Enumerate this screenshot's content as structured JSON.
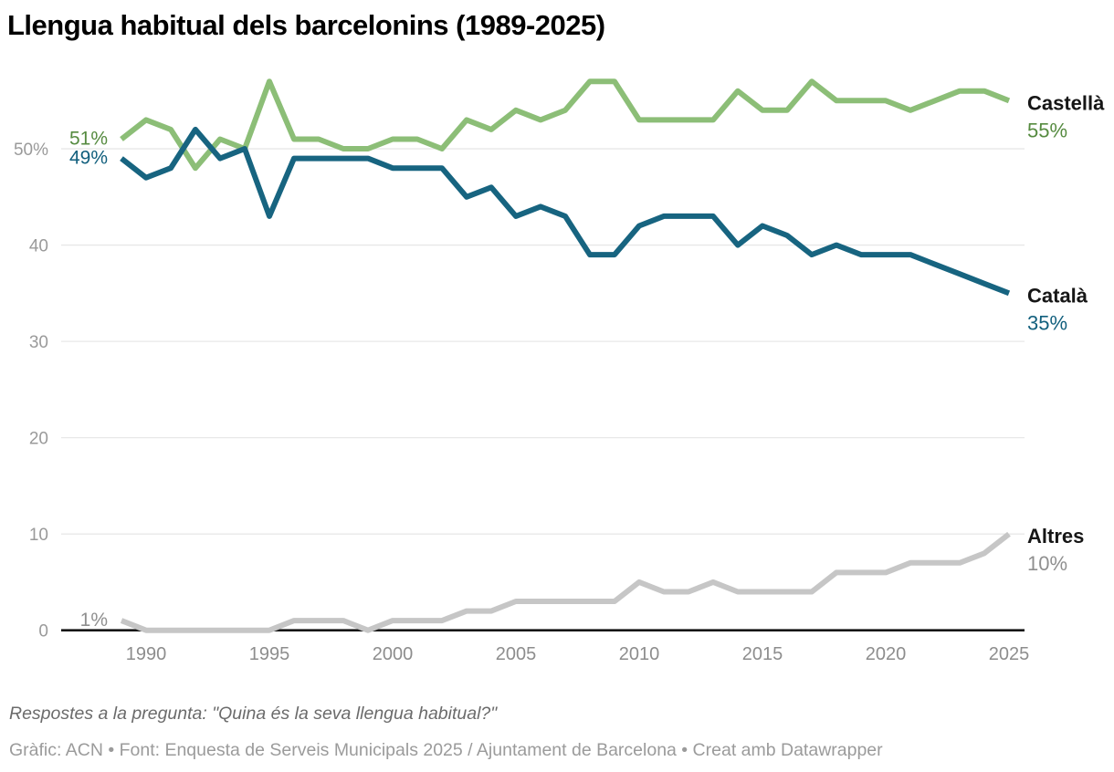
{
  "title": "Llengua habitual dels barcelonins (1989-2025)",
  "footer": {
    "note": "Respostes a la pregunta: \"Quina és la seva llengua habitual?\"",
    "credits": "Gràfic: ACN • Font: Enquesta de Serveis Municipals 2025 / Ajuntament de Barcelona • Creat amb Datawrapper"
  },
  "colors": {
    "castella_line": "#8cbe77",
    "castella_label": "#568b40",
    "catala_line": "#176480",
    "catala_label": "#115f7d",
    "altres_line": "#c6c6c6",
    "altres_label": "#8f8f8f",
    "grid": "#e8e8e8",
    "axis_baseline": "#161616",
    "tick_text": "#9a9a9a"
  },
  "chart_data": {
    "type": "line",
    "title": "Llengua habitual dels barcelonins (1989-2025)",
    "xlabel": "",
    "ylabel": "",
    "ylim": [
      0,
      58
    ],
    "grid": "horizontal",
    "legend_position": "right-edge-labels",
    "x": [
      1989,
      1990,
      1991,
      1992,
      1993,
      1994,
      1995,
      1996,
      1997,
      1998,
      1999,
      2000,
      2001,
      2002,
      2003,
      2004,
      2005,
      2006,
      2007,
      2008,
      2009,
      2010,
      2011,
      2012,
      2013,
      2014,
      2015,
      2016,
      2017,
      2018,
      2019,
      2020,
      2021,
      2022,
      2023,
      2024,
      2025
    ],
    "xticks": [
      1990,
      1995,
      2000,
      2005,
      2010,
      2015,
      2020,
      2025
    ],
    "yticks": [
      {
        "value": 50,
        "label": "50%"
      },
      {
        "value": 40,
        "label": "40"
      },
      {
        "value": 30,
        "label": "30"
      },
      {
        "value": 20,
        "label": "20"
      },
      {
        "value": 10,
        "label": "10"
      },
      {
        "value": 0,
        "label": "0"
      }
    ],
    "series": [
      {
        "name": "Castellà",
        "color": "#8cbe77",
        "label_color": "#568b40",
        "start_label": "51%",
        "end_label": "55%",
        "values": [
          51,
          53,
          52,
          48,
          51,
          50,
          57,
          51,
          51,
          50,
          50,
          51,
          51,
          50,
          53,
          52,
          54,
          53,
          54,
          57,
          57,
          53,
          53,
          53,
          53,
          56,
          54,
          54,
          57,
          55,
          55,
          55,
          54,
          55,
          56,
          56,
          55
        ]
      },
      {
        "name": "Català",
        "color": "#176480",
        "label_color": "#115f7d",
        "start_label": "49%",
        "end_label": "35%",
        "values": [
          49,
          47,
          48,
          52,
          49,
          50,
          43,
          49,
          49,
          49,
          49,
          48,
          48,
          48,
          45,
          46,
          43,
          44,
          43,
          39,
          39,
          42,
          43,
          43,
          43,
          40,
          42,
          41,
          39,
          40,
          39,
          39,
          39,
          38,
          37,
          36,
          35
        ]
      },
      {
        "name": "Altres",
        "color": "#c6c6c6",
        "label_color": "#8f8f8f",
        "start_label": "1%",
        "end_label": "10%",
        "values": [
          1,
          0,
          0,
          0,
          0,
          0,
          0,
          1,
          1,
          1,
          0,
          1,
          1,
          1,
          2,
          2,
          3,
          3,
          3,
          3,
          3,
          5,
          4,
          4,
          5,
          4,
          4,
          4,
          4,
          6,
          6,
          6,
          7,
          7,
          7,
          8,
          10
        ]
      }
    ]
  }
}
